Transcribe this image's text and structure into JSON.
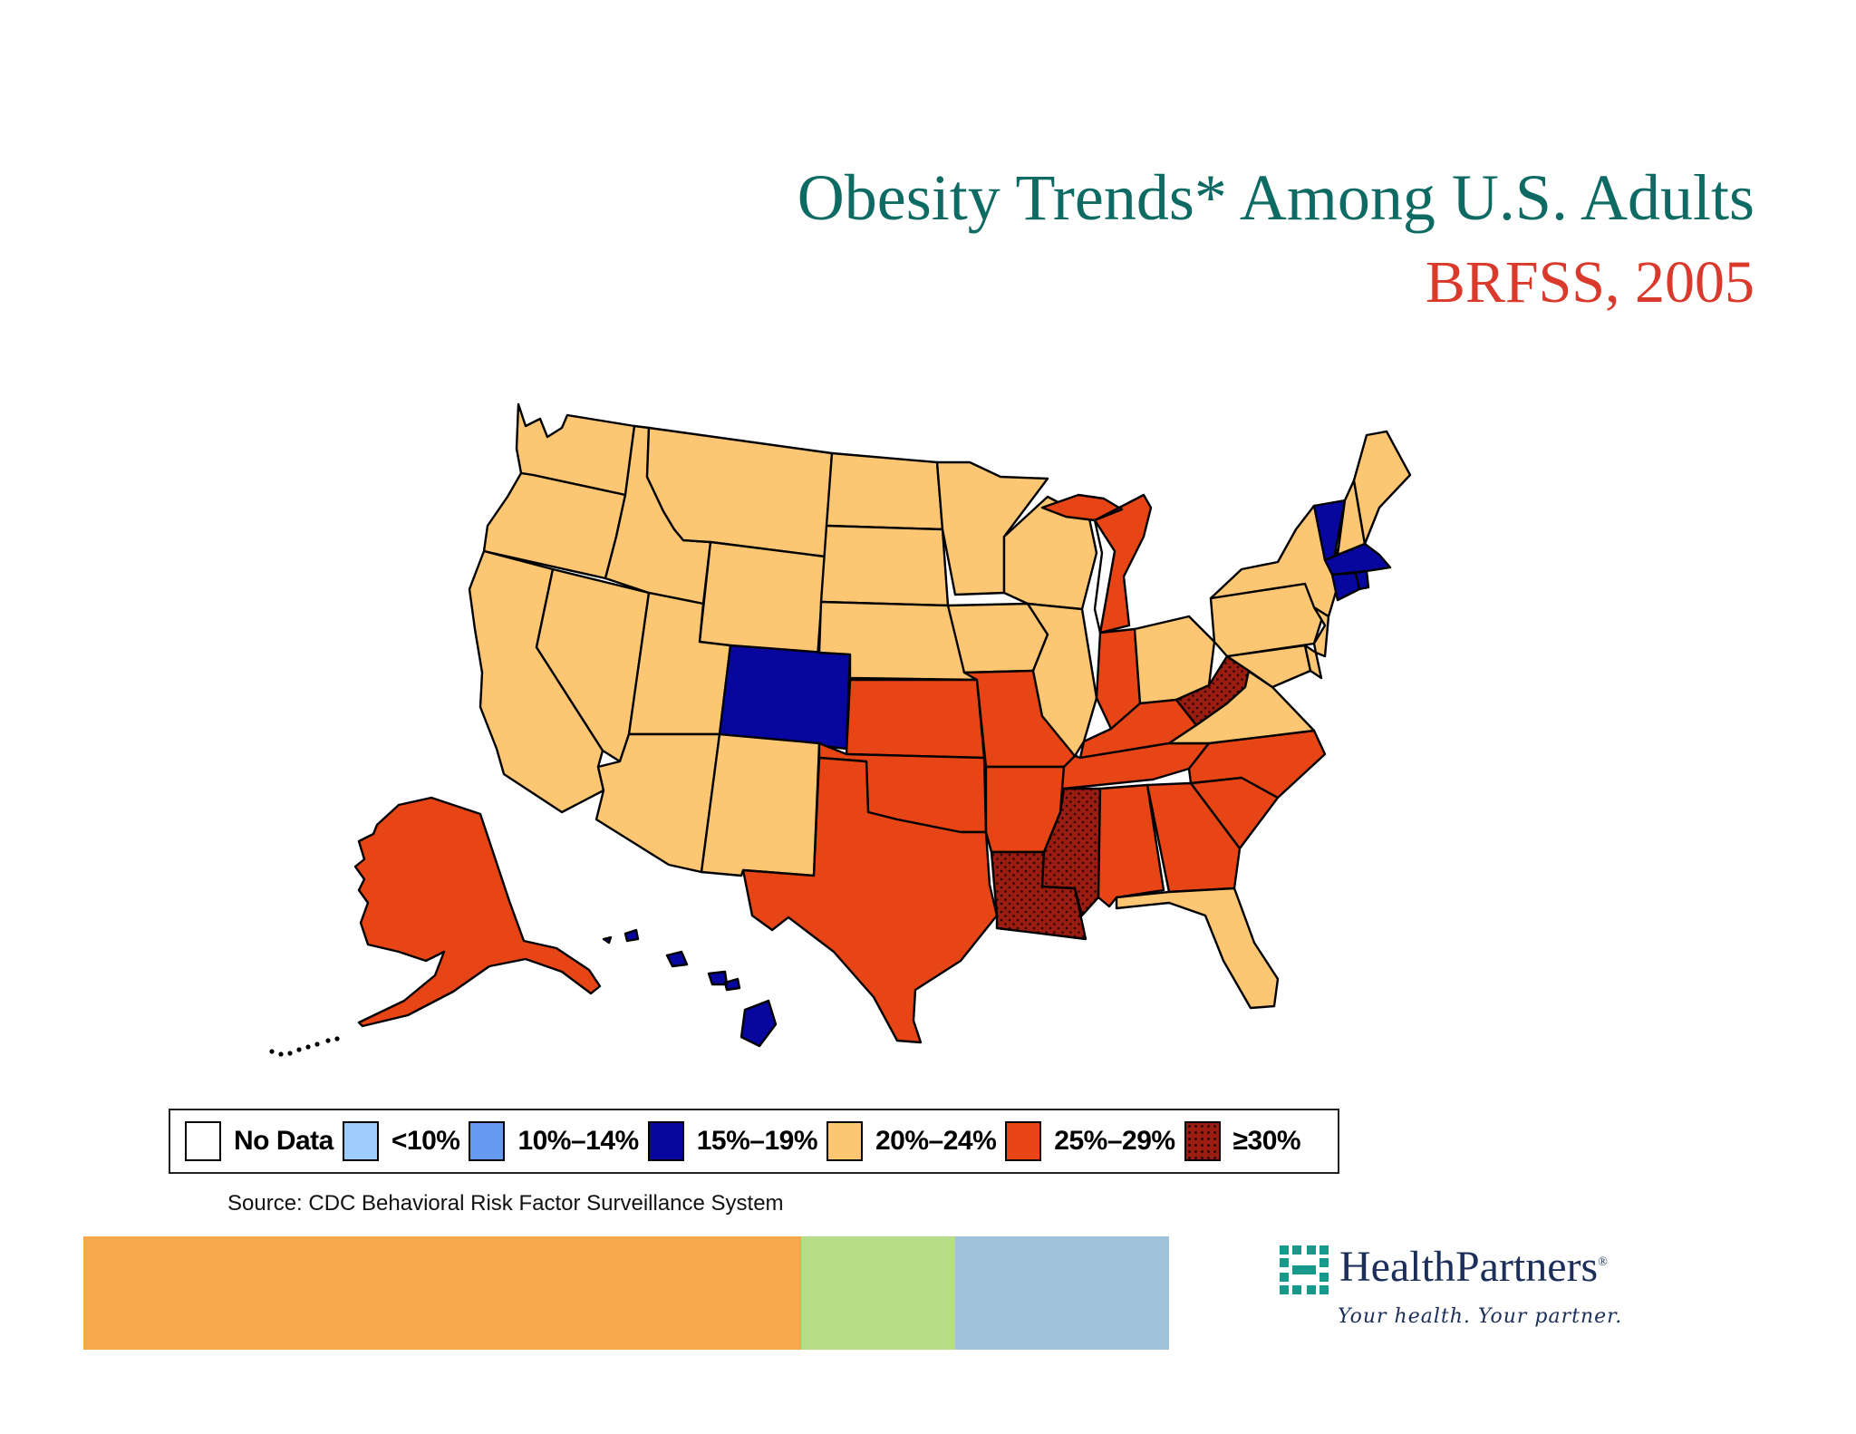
{
  "title": "Obesity Trends* Among U.S. Adults",
  "subtitle": "BRFSS, 2005",
  "colors": {
    "no_data": "#ffffff",
    "lt10": "#9fcdfb",
    "p10_14": "#6699f0",
    "p15_19": "#0707a0",
    "p20_24": "#fdc673",
    "p25_29": "#e84516",
    "gte30": "#9b1c10",
    "title": "#0e6b63",
    "subtitle": "#d93a2b"
  },
  "legend": [
    {
      "label": "No Data",
      "color": "#ffffff"
    },
    {
      "label": "<10%",
      "color": "#9fcdfb"
    },
    {
      "label": "10%–14%",
      "color": "#6699f0"
    },
    {
      "label": "15%–19%",
      "color": "#0707a0"
    },
    {
      "label": "20%–24%",
      "color": "#fdc673"
    },
    {
      "label": "25%–29%",
      "color": "#e84516"
    },
    {
      "label": "≥30%",
      "color": "#9b1c10",
      "pattern": "dotted"
    }
  ],
  "map_data": {
    "category_by_state": {
      "WA": "20%–24%",
      "OR": "20%–24%",
      "CA": "20%–24%",
      "NV": "20%–24%",
      "ID": "20%–24%",
      "MT": "20%–24%",
      "WY": "20%–24%",
      "UT": "20%–24%",
      "AZ": "20%–24%",
      "NM": "20%–24%",
      "CO": "15%–19%",
      "ND": "20%–24%",
      "SD": "20%–24%",
      "NE": "20%–24%",
      "KS": "25%–29%",
      "OK": "25%–29%",
      "TX": "25%–29%",
      "MN": "20%–24%",
      "IA": "20%–24%",
      "MO": "25%–29%",
      "AR": "25%–29%",
      "LA": "≥30%",
      "WI": "20%–24%",
      "IL": "20%–24%",
      "MI": "25%–29%",
      "IN": "25%–29%",
      "OH": "20%–24%",
      "KY": "25%–29%",
      "TN": "25%–29%",
      "MS": "≥30%",
      "AL": "25%–29%",
      "GA": "25%–29%",
      "FL": "20%–24%",
      "SC": "25%–29%",
      "NC": "25%–29%",
      "VA": "20%–24%",
      "WV": "≥30%",
      "PA": "20%–24%",
      "NY": "20%–24%",
      "VT": "15%–19%",
      "NH": "20%–24%",
      "ME": "20%–24%",
      "MA": "15%–19%",
      "CT": "15%–19%",
      "RI": "15%–19%",
      "NJ": "20%–24%",
      "DE": "20%–24%",
      "MD": "20%–24%",
      "AK": "25%–29%",
      "HI": "15%–19%"
    }
  },
  "source": "Source: CDC Behavioral Risk Factor Surveillance  System",
  "footer_bars": [
    {
      "color": "#f7a84c"
    },
    {
      "color": "#b5dc87"
    },
    {
      "color": "#9fc2db"
    }
  ],
  "logo": {
    "name": "HealthPartners",
    "registered": "®",
    "tagline": "Your health. Your partner.",
    "color": "#1c2f5a",
    "mark_color": "#179a8c"
  }
}
